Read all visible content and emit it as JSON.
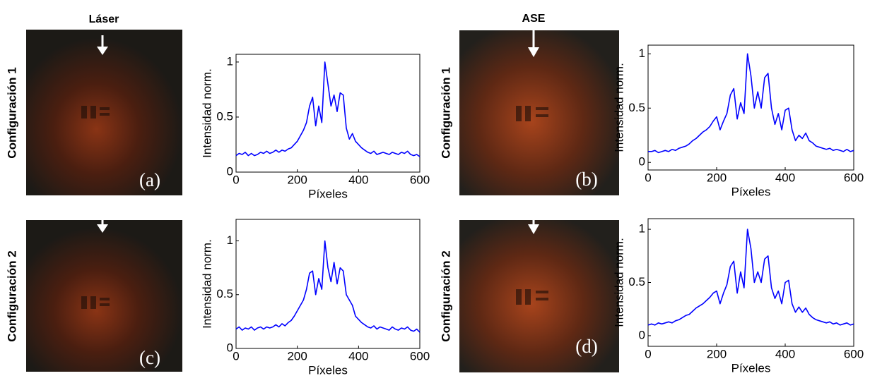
{
  "columns": [
    "Láser",
    "ASE"
  ],
  "rows": [
    "Configuración 1",
    "Configuración 2"
  ],
  "panels": [
    "(a)",
    "(b)",
    "(c)",
    "(d)"
  ],
  "chart_data": [
    {
      "type": "line",
      "xlabel": "Píxeles",
      "ylabel": "Intensidad norm.",
      "color": "#0000ff",
      "xlim": [
        0,
        600
      ],
      "ylim": [
        0,
        1.07
      ],
      "xticks": [
        0,
        200,
        400,
        600
      ],
      "yticks": [
        0,
        0.5,
        1
      ],
      "x": [
        0,
        10,
        20,
        30,
        40,
        50,
        60,
        70,
        80,
        90,
        100,
        110,
        120,
        130,
        140,
        150,
        160,
        170,
        180,
        190,
        200,
        210,
        220,
        230,
        240,
        250,
        260,
        270,
        280,
        290,
        300,
        310,
        320,
        330,
        340,
        350,
        360,
        370,
        380,
        390,
        400,
        410,
        420,
        430,
        440,
        450,
        460,
        470,
        480,
        490,
        500,
        510,
        520,
        530,
        540,
        550,
        560,
        570,
        580,
        590,
        600
      ],
      "values": [
        0.15,
        0.17,
        0.16,
        0.18,
        0.15,
        0.17,
        0.15,
        0.16,
        0.18,
        0.17,
        0.19,
        0.17,
        0.18,
        0.2,
        0.18,
        0.2,
        0.19,
        0.21,
        0.22,
        0.25,
        0.28,
        0.33,
        0.38,
        0.45,
        0.6,
        0.68,
        0.42,
        0.6,
        0.45,
        1.0,
        0.8,
        0.6,
        0.7,
        0.55,
        0.72,
        0.7,
        0.4,
        0.3,
        0.35,
        0.28,
        0.25,
        0.22,
        0.2,
        0.18,
        0.17,
        0.19,
        0.16,
        0.17,
        0.18,
        0.17,
        0.16,
        0.18,
        0.17,
        0.16,
        0.18,
        0.17,
        0.19,
        0.16,
        0.15,
        0.16,
        0.14
      ]
    },
    {
      "type": "line",
      "xlabel": "Píxeles",
      "ylabel": "Intensidad norm.",
      "color": "#0000ff",
      "xlim": [
        0,
        600
      ],
      "ylim": [
        -0.07,
        1.08
      ],
      "xticks": [
        0,
        200,
        400,
        600
      ],
      "yticks": [
        0,
        0.5,
        1
      ],
      "x": [
        0,
        10,
        20,
        30,
        40,
        50,
        60,
        70,
        80,
        90,
        100,
        110,
        120,
        130,
        140,
        150,
        160,
        170,
        180,
        190,
        200,
        210,
        220,
        230,
        240,
        250,
        260,
        270,
        280,
        290,
        300,
        310,
        320,
        330,
        340,
        350,
        360,
        370,
        380,
        390,
        400,
        410,
        420,
        430,
        440,
        450,
        460,
        470,
        480,
        490,
        500,
        510,
        520,
        530,
        540,
        550,
        560,
        570,
        580,
        590,
        600
      ],
      "values": [
        0.1,
        0.1,
        0.11,
        0.09,
        0.1,
        0.11,
        0.1,
        0.12,
        0.11,
        0.13,
        0.14,
        0.15,
        0.17,
        0.2,
        0.22,
        0.25,
        0.28,
        0.3,
        0.33,
        0.38,
        0.42,
        0.3,
        0.38,
        0.45,
        0.62,
        0.68,
        0.4,
        0.55,
        0.45,
        1.0,
        0.8,
        0.5,
        0.65,
        0.5,
        0.78,
        0.82,
        0.5,
        0.35,
        0.45,
        0.3,
        0.48,
        0.5,
        0.3,
        0.2,
        0.25,
        0.22,
        0.27,
        0.2,
        0.18,
        0.15,
        0.14,
        0.13,
        0.12,
        0.13,
        0.11,
        0.12,
        0.11,
        0.1,
        0.12,
        0.1,
        0.11
      ]
    },
    {
      "type": "line",
      "xlabel": "Píxeles",
      "ylabel": "Intensidad norm.",
      "color": "#0000ff",
      "xlim": [
        0,
        600
      ],
      "ylim": [
        0,
        1.2
      ],
      "xticks": [
        0,
        200,
        400,
        600
      ],
      "yticks": [
        0,
        0.5,
        1
      ],
      "x": [
        0,
        10,
        20,
        30,
        40,
        50,
        60,
        70,
        80,
        90,
        100,
        110,
        120,
        130,
        140,
        150,
        160,
        170,
        180,
        190,
        200,
        210,
        220,
        230,
        240,
        250,
        260,
        270,
        280,
        290,
        300,
        310,
        320,
        330,
        340,
        350,
        360,
        370,
        380,
        390,
        400,
        410,
        420,
        430,
        440,
        450,
        460,
        470,
        480,
        490,
        500,
        510,
        520,
        530,
        540,
        550,
        560,
        570,
        580,
        590,
        600
      ],
      "values": [
        0.18,
        0.2,
        0.17,
        0.19,
        0.18,
        0.2,
        0.17,
        0.19,
        0.2,
        0.18,
        0.2,
        0.19,
        0.2,
        0.22,
        0.2,
        0.23,
        0.21,
        0.24,
        0.26,
        0.3,
        0.35,
        0.4,
        0.45,
        0.55,
        0.7,
        0.72,
        0.5,
        0.65,
        0.55,
        1.0,
        0.75,
        0.62,
        0.8,
        0.6,
        0.75,
        0.72,
        0.5,
        0.45,
        0.4,
        0.3,
        0.27,
        0.24,
        0.22,
        0.2,
        0.19,
        0.21,
        0.18,
        0.2,
        0.19,
        0.18,
        0.17,
        0.2,
        0.18,
        0.17,
        0.19,
        0.18,
        0.2,
        0.17,
        0.16,
        0.18,
        0.15
      ]
    },
    {
      "type": "line",
      "xlabel": "Píxeles",
      "ylabel": "Intensidad norm.",
      "color": "#0000ff",
      "xlim": [
        0,
        600
      ],
      "ylim": [
        -0.1,
        1.1
      ],
      "xticks": [
        0,
        200,
        400,
        600
      ],
      "yticks": [
        0,
        0.5,
        1
      ],
      "x": [
        0,
        10,
        20,
        30,
        40,
        50,
        60,
        70,
        80,
        90,
        100,
        110,
        120,
        130,
        140,
        150,
        160,
        170,
        180,
        190,
        200,
        210,
        220,
        230,
        240,
        250,
        260,
        270,
        280,
        290,
        300,
        310,
        320,
        330,
        340,
        350,
        360,
        370,
        380,
        390,
        400,
        410,
        420,
        430,
        440,
        450,
        460,
        470,
        480,
        490,
        500,
        510,
        520,
        530,
        540,
        550,
        560,
        570,
        580,
        590,
        600
      ],
      "values": [
        0.1,
        0.11,
        0.1,
        0.12,
        0.11,
        0.12,
        0.13,
        0.12,
        0.14,
        0.15,
        0.17,
        0.19,
        0.2,
        0.23,
        0.26,
        0.28,
        0.3,
        0.33,
        0.36,
        0.4,
        0.42,
        0.3,
        0.4,
        0.48,
        0.65,
        0.7,
        0.4,
        0.6,
        0.45,
        1.0,
        0.82,
        0.5,
        0.6,
        0.5,
        0.72,
        0.75,
        0.45,
        0.35,
        0.42,
        0.3,
        0.5,
        0.52,
        0.3,
        0.22,
        0.27,
        0.22,
        0.26,
        0.2,
        0.17,
        0.15,
        0.14,
        0.13,
        0.12,
        0.13,
        0.11,
        0.12,
        0.1,
        0.11,
        0.12,
        0.1,
        0.11
      ]
    }
  ]
}
